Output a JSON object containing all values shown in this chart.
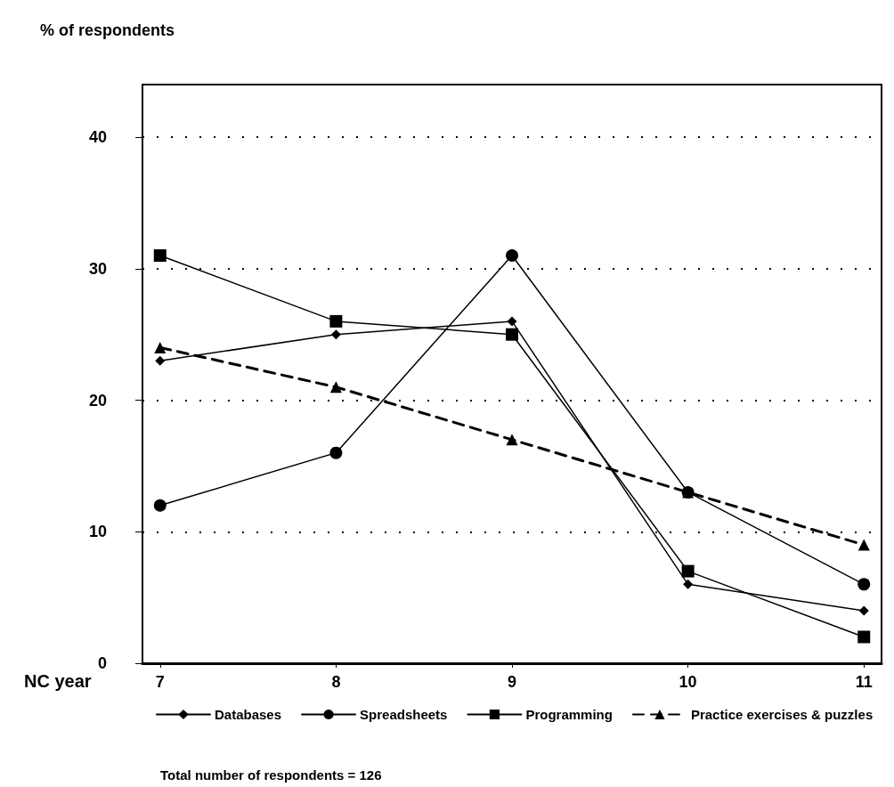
{
  "chart_data": {
    "type": "line",
    "ylabel": "% of respondents",
    "xlabel": "NC year",
    "x": [
      7,
      8,
      9,
      10,
      11
    ],
    "xlim": [
      6.9,
      11.1
    ],
    "xticks": [
      7,
      8,
      9,
      10,
      11
    ],
    "ylim": [
      0,
      44
    ],
    "yticks": [
      0,
      10,
      20,
      30,
      40
    ],
    "grid": "y",
    "legend": "bottom",
    "annotations": [
      "Total number of respondents = 126"
    ],
    "series": [
      {
        "name": "Databases",
        "color": "#000000",
        "marker": "diamond",
        "line_style": "solid",
        "values": [
          23,
          25,
          26,
          6,
          4
        ]
      },
      {
        "name": "Spreadsheets",
        "color": "#000000",
        "marker": "circle",
        "line_style": "solid",
        "values": [
          12,
          16,
          31,
          13,
          6
        ]
      },
      {
        "name": "Programming",
        "color": "#000000",
        "marker": "square",
        "line_style": "solid",
        "values": [
          31,
          26,
          25,
          7,
          2
        ]
      },
      {
        "name": "Practice exercises & puzzles",
        "color": "#000000",
        "marker": "triangle",
        "line_style": "dashed",
        "values": [
          24,
          21,
          17,
          13,
          9
        ]
      }
    ]
  }
}
